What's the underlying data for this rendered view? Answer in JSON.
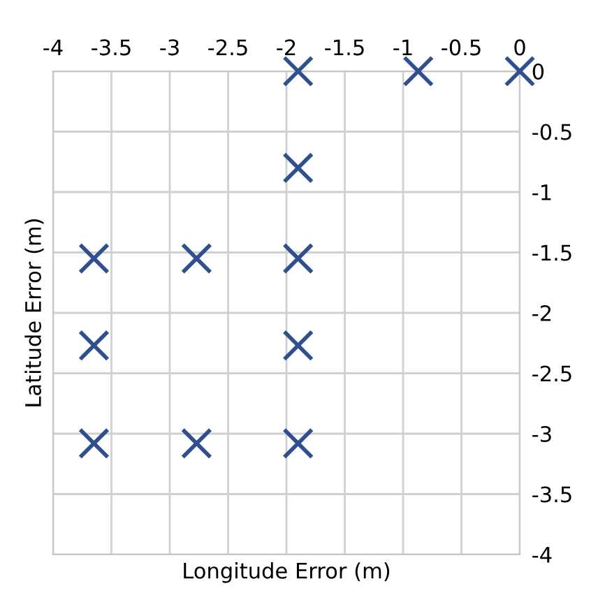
{
  "chart_data": {
    "type": "scatter",
    "xlabel": "Longitude Error (m)",
    "ylabel": "Latitude Error (m)",
    "series": [
      {
        "color": "#2f4f8f",
        "x": [
          -1.9,
          -0.87,
          0,
          -1.9,
          -3.65,
          -2.77,
          -1.9,
          -3.65,
          -1.9,
          -3.65,
          -2.77,
          -1.9
        ],
        "values": [
          0,
          0,
          0,
          -0.8,
          -1.55,
          -1.55,
          -1.55,
          -2.27,
          -2.27,
          -3.08,
          -3.08,
          -3.08
        ]
      }
    ],
    "xlim": [
      -4,
      0
    ],
    "xticks": [
      -4,
      -3.5,
      -3,
      -2.5,
      -2,
      -1.5,
      -1,
      -0.5,
      0
    ],
    "ylim": [
      -4,
      0
    ],
    "yticks": [
      -4,
      -3.5,
      -3,
      -2.5,
      -2,
      -1.5,
      -1,
      -0.5,
      0
    ],
    "grid": true,
    "marker": "cross",
    "legend": false
  }
}
